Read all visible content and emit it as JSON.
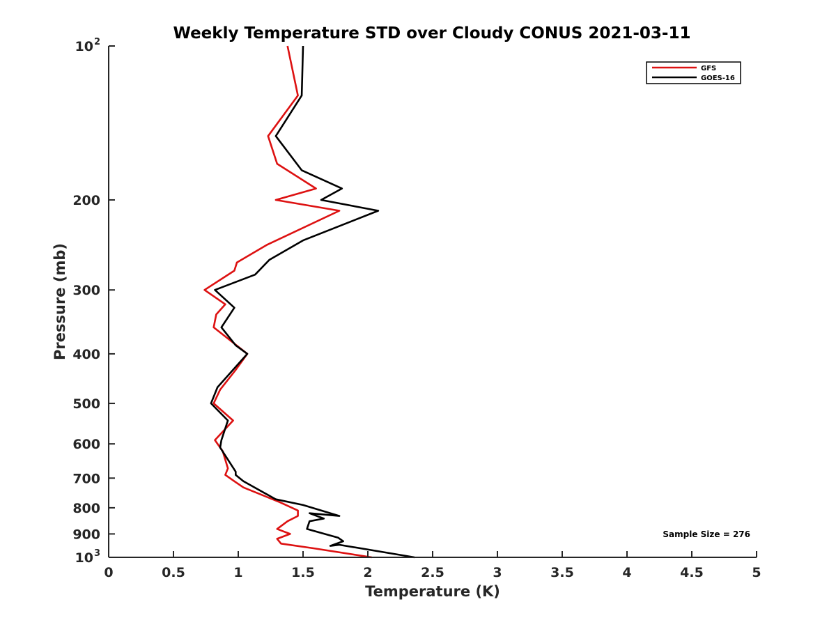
{
  "chart_data": {
    "type": "line",
    "title": "Weekly Temperature STD over Cloudy CONUS 2021-03-11",
    "xlabel": "Temperature (K)",
    "ylabel": "Pressure (mb)",
    "xlim": [
      0,
      5
    ],
    "ylim": [
      100,
      1000
    ],
    "y_scale": "log",
    "y_reversed": true,
    "grid": false,
    "legend_position": "top-right",
    "x_ticks": [
      {
        "value": 0,
        "label": "0"
      },
      {
        "value": 0.5,
        "label": "0.5"
      },
      {
        "value": 1,
        "label": "1"
      },
      {
        "value": 1.5,
        "label": "1.5"
      },
      {
        "value": 2,
        "label": "2"
      },
      {
        "value": 2.5,
        "label": "2.5"
      },
      {
        "value": 3,
        "label": "3"
      },
      {
        "value": 3.5,
        "label": "3.5"
      },
      {
        "value": 4,
        "label": "4"
      },
      {
        "value": 4.5,
        "label": "4.5"
      },
      {
        "value": 5,
        "label": "5"
      }
    ],
    "y_ticks": [
      {
        "value": 100,
        "label": "10",
        "sup": "2"
      },
      {
        "value": 200,
        "label": "200",
        "sup": ""
      },
      {
        "value": 300,
        "label": "300",
        "sup": ""
      },
      {
        "value": 400,
        "label": "400",
        "sup": ""
      },
      {
        "value": 500,
        "label": "500",
        "sup": ""
      },
      {
        "value": 600,
        "label": "600",
        "sup": ""
      },
      {
        "value": 700,
        "label": "700",
        "sup": ""
      },
      {
        "value": 800,
        "label": "800",
        "sup": ""
      },
      {
        "value": 900,
        "label": "900",
        "sup": ""
      },
      {
        "value": 1000,
        "label": "10",
        "sup": "3"
      }
    ],
    "series": [
      {
        "name": "GFS",
        "color": "#dd1111",
        "points": [
          [
            1.38,
            100
          ],
          [
            1.46,
            125
          ],
          [
            1.23,
            150
          ],
          [
            1.3,
            170
          ],
          [
            1.6,
            190
          ],
          [
            1.29,
            200
          ],
          [
            1.78,
            210
          ],
          [
            1.22,
            245
          ],
          [
            0.99,
            265
          ],
          [
            0.97,
            275
          ],
          [
            0.74,
            300
          ],
          [
            0.9,
            320
          ],
          [
            0.83,
            335
          ],
          [
            0.81,
            355
          ],
          [
            1.07,
            400
          ],
          [
            0.98,
            430
          ],
          [
            0.86,
            470
          ],
          [
            0.81,
            500
          ],
          [
            0.96,
            540
          ],
          [
            0.82,
            590
          ],
          [
            0.88,
            620
          ],
          [
            0.92,
            670
          ],
          [
            0.9,
            690
          ],
          [
            0.97,
            710
          ],
          [
            1.04,
            730
          ],
          [
            1.32,
            780
          ],
          [
            1.46,
            810
          ],
          [
            1.46,
            830
          ],
          [
            1.38,
            850
          ],
          [
            1.3,
            880
          ],
          [
            1.4,
            900
          ],
          [
            1.3,
            920
          ],
          [
            1.33,
            940
          ],
          [
            1.58,
            960
          ],
          [
            2.03,
            1000
          ]
        ]
      },
      {
        "name": "GOES-16",
        "color": "#000000",
        "points": [
          [
            1.5,
            100
          ],
          [
            1.49,
            125
          ],
          [
            1.29,
            150
          ],
          [
            1.49,
            175
          ],
          [
            1.8,
            190
          ],
          [
            1.64,
            200
          ],
          [
            2.08,
            210
          ],
          [
            1.5,
            240
          ],
          [
            1.24,
            262
          ],
          [
            1.13,
            280
          ],
          [
            0.82,
            300
          ],
          [
            0.97,
            325
          ],
          [
            0.87,
            355
          ],
          [
            0.98,
            385
          ],
          [
            1.07,
            400
          ],
          [
            0.84,
            465
          ],
          [
            0.79,
            500
          ],
          [
            0.92,
            540
          ],
          [
            0.87,
            590
          ],
          [
            0.86,
            610
          ],
          [
            0.98,
            680
          ],
          [
            0.98,
            690
          ],
          [
            1.04,
            710
          ],
          [
            1.29,
            770
          ],
          [
            1.5,
            790
          ],
          [
            1.78,
            830
          ],
          [
            1.55,
            820
          ],
          [
            1.66,
            840
          ],
          [
            1.55,
            850
          ],
          [
            1.53,
            880
          ],
          [
            1.77,
            915
          ],
          [
            1.81,
            930
          ],
          [
            1.71,
            950
          ],
          [
            1.78,
            945
          ],
          [
            2.36,
            1000
          ]
        ]
      }
    ],
    "annotation": "Sample Size = 276"
  }
}
